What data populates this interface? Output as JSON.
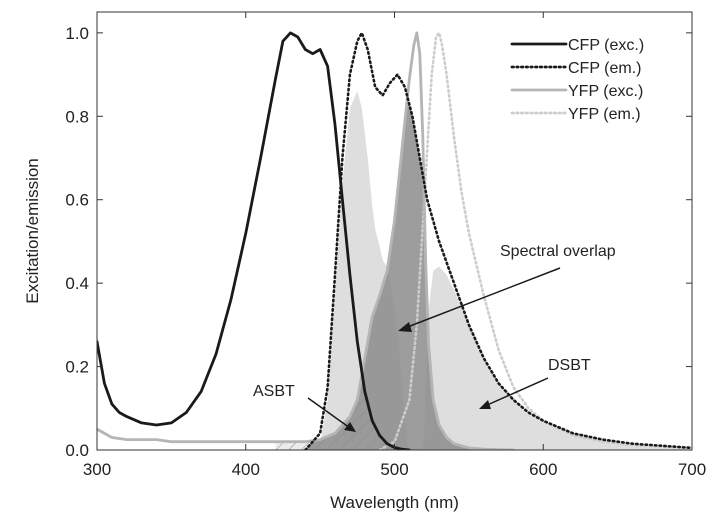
{
  "chart_data": {
    "type": "line",
    "title": "",
    "xlabel": "Wavelength (nm)",
    "ylabel": "Excitation/emission",
    "xlim": [
      300,
      700
    ],
    "ylim": [
      0,
      1.05
    ],
    "x_ticks": [
      "300",
      "400",
      "500",
      "600",
      "700"
    ],
    "y_ticks": [
      "0.0",
      "0.2",
      "0.4",
      "0.6",
      "0.8",
      "1.0"
    ],
    "grid": false,
    "legend_position": "top-right",
    "series": [
      {
        "name": "CFP (exc.)",
        "color": "#1a1a1a",
        "dash": "solid",
        "x": [
          300,
          305,
          310,
          315,
          320,
          330,
          340,
          350,
          360,
          370,
          380,
          390,
          400,
          410,
          420,
          425,
          430,
          435,
          440,
          445,
          450,
          455,
          460,
          465,
          470,
          475,
          480,
          485,
          490,
          495,
          500,
          505,
          510
        ],
        "y": [
          0.26,
          0.16,
          0.11,
          0.09,
          0.08,
          0.065,
          0.06,
          0.065,
          0.09,
          0.14,
          0.23,
          0.36,
          0.52,
          0.7,
          0.89,
          0.98,
          1.0,
          0.99,
          0.96,
          0.95,
          0.96,
          0.92,
          0.78,
          0.6,
          0.42,
          0.26,
          0.14,
          0.07,
          0.035,
          0.015,
          0.006,
          0.002,
          0.0
        ]
      },
      {
        "name": "CFP (em.)",
        "color": "#1a1a1a",
        "dash": "dotted",
        "x": [
          440,
          450,
          455,
          460,
          465,
          470,
          475,
          478,
          482,
          487,
          492,
          497,
          502,
          507,
          512,
          517,
          522,
          530,
          540,
          550,
          560,
          570,
          580,
          590,
          600,
          620,
          640,
          660,
          680,
          700
        ],
        "y": [
          0.0,
          0.04,
          0.15,
          0.42,
          0.7,
          0.9,
          0.98,
          1.0,
          0.96,
          0.87,
          0.85,
          0.88,
          0.9,
          0.87,
          0.8,
          0.7,
          0.6,
          0.5,
          0.4,
          0.3,
          0.22,
          0.16,
          0.12,
          0.09,
          0.07,
          0.04,
          0.025,
          0.015,
          0.01,
          0.005
        ]
      },
      {
        "name": "YFP (exc.)",
        "color": "#b5b5b5",
        "dash": "solid",
        "x": [
          300,
          310,
          320,
          330,
          340,
          350,
          360,
          380,
          400,
          420,
          440,
          450,
          460,
          470,
          475,
          480,
          485,
          490,
          495,
          500,
          505,
          510,
          513,
          515,
          517,
          519,
          521,
          523,
          526,
          530,
          535,
          540,
          550,
          560,
          570,
          580
        ],
        "y": [
          0.05,
          0.03,
          0.025,
          0.025,
          0.025,
          0.02,
          0.02,
          0.02,
          0.02,
          0.02,
          0.02,
          0.025,
          0.04,
          0.08,
          0.12,
          0.22,
          0.32,
          0.37,
          0.43,
          0.55,
          0.72,
          0.89,
          0.97,
          1.0,
          0.95,
          0.75,
          0.45,
          0.25,
          0.12,
          0.06,
          0.03,
          0.015,
          0.005,
          0.002,
          0.001,
          0.0
        ]
      },
      {
        "name": "YFP (em.)",
        "color": "#cccccc",
        "dash": "dotted",
        "x": [
          490,
          500,
          510,
          515,
          520,
          525,
          528,
          530,
          532,
          535,
          540,
          545,
          550,
          560,
          570,
          580,
          590,
          600,
          620,
          640,
          660,
          680,
          700
        ],
        "y": [
          0.0,
          0.02,
          0.12,
          0.3,
          0.6,
          0.9,
          0.99,
          1.0,
          0.97,
          0.9,
          0.75,
          0.62,
          0.52,
          0.37,
          0.24,
          0.15,
          0.1,
          0.07,
          0.035,
          0.02,
          0.012,
          0.008,
          0.005
        ]
      }
    ],
    "annotations": [
      {
        "text": "Spectral overlap"
      },
      {
        "text": "ASBT"
      },
      {
        "text": "DSBT"
      }
    ],
    "fills": {
      "overlap_color": "#8c8c8c",
      "dsbt_color": "#dedede",
      "asbt_hatch_color": "#888888"
    }
  }
}
